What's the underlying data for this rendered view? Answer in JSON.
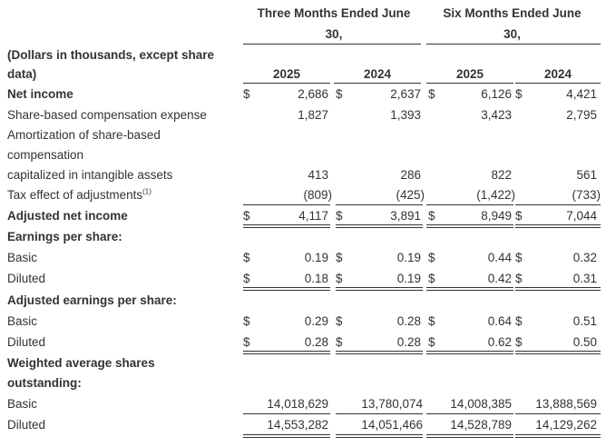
{
  "header": {
    "three_months_line1": "Three Months Ended June",
    "three_months_line2": "30,",
    "six_months_line1": "Six Months Ended June",
    "six_months_line2": "30,",
    "units_line1": "(Dollars in thousands, except share",
    "units_line2": "data)",
    "years": [
      "2025",
      "2024",
      "2025",
      "2024"
    ]
  },
  "rows": {
    "net_income": {
      "label": "Net income",
      "values": [
        "2,686",
        "2,637",
        "6,126",
        "4,421"
      ]
    },
    "sbc": {
      "label": "Share-based compensation expense",
      "values": [
        "1,827",
        "1,393",
        "3,423",
        "2,795"
      ]
    },
    "amort": {
      "label_line1": "Amortization of share-based",
      "label_line2": "compensation",
      "label_line3": "capitalized in intangible assets",
      "values": [
        "413",
        "286",
        "822",
        "561"
      ]
    },
    "tax": {
      "label": "Tax effect of adjustments",
      "footnote": "(1)",
      "values": [
        "(809)",
        "(425)",
        "(1,422)",
        "(733)"
      ]
    },
    "adj_net_income": {
      "label": "Adjusted net income",
      "values": [
        "4,117",
        "3,891",
        "8,949",
        "7,044"
      ]
    },
    "eps_header": {
      "label": "Earnings per share:"
    },
    "eps_basic": {
      "label": "Basic",
      "values": [
        "0.19",
        "0.19",
        "0.44",
        "0.32"
      ]
    },
    "eps_diluted": {
      "label": "Diluted",
      "values": [
        "0.18",
        "0.19",
        "0.42",
        "0.31"
      ]
    },
    "adj_eps_header": {
      "label": "Adjusted earnings per share:"
    },
    "adj_eps_basic": {
      "label": "Basic",
      "values": [
        "0.29",
        "0.28",
        "0.64",
        "0.51"
      ]
    },
    "adj_eps_diluted": {
      "label": "Diluted",
      "values": [
        "0.28",
        "0.28",
        "0.62",
        "0.50"
      ]
    },
    "wavg_header": {
      "label_line1": "Weighted average shares",
      "label_line2": "outstanding:"
    },
    "wavg_basic": {
      "label": "Basic",
      "values": [
        "14,018,629",
        "13,780,074",
        "14,008,385",
        "13,888,569"
      ]
    },
    "wavg_diluted": {
      "label": "Diluted",
      "values": [
        "14,553,282",
        "14,051,466",
        "14,528,789",
        "14,129,262"
      ]
    }
  },
  "currency_symbol": "$"
}
